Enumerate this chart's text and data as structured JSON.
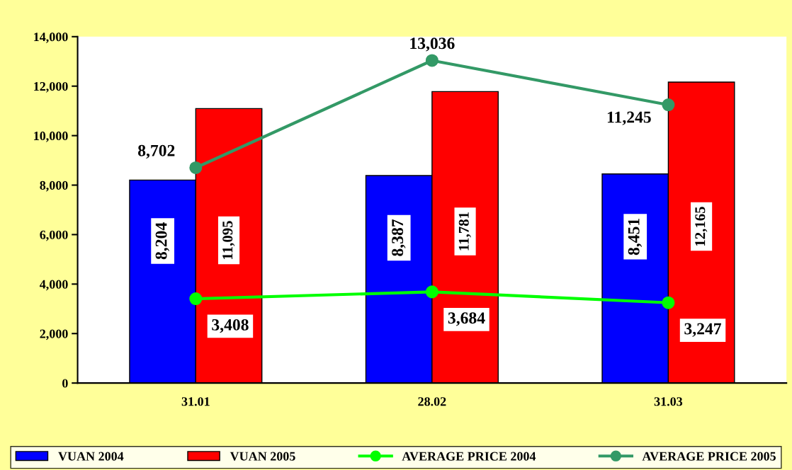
{
  "chart_data": {
    "type": "bar",
    "categories": [
      "31.01",
      "28.02",
      "31.03"
    ],
    "series": [
      {
        "name": "VUAN 2004",
        "color": "#0000ff",
        "values": [
          8204,
          8387,
          8451
        ],
        "value_labels": [
          "8,204",
          "8,387",
          "8,451"
        ]
      },
      {
        "name": "VUAN 2005",
        "color": "#ff0000",
        "values": [
          11095,
          11781,
          12165
        ],
        "value_labels": [
          "11,095",
          "11,781",
          "12,165"
        ]
      },
      {
        "name": "AVERAGE PRICE 2004",
        "type": "line",
        "color": "#00ff00",
        "values": [
          3408,
          3684,
          3247
        ],
        "value_labels": [
          "3,408",
          "3,684",
          "3,247"
        ]
      },
      {
        "name": "AVERAGE PRICE 2005",
        "type": "line",
        "color": "#339966",
        "values": [
          8702,
          13036,
          11245
        ],
        "value_labels": [
          "8,702",
          "13,036",
          "11,245"
        ]
      }
    ],
    "ylim": [
      0,
      14000
    ],
    "yticks": [
      0,
      {
        "value": 2000,
        "label": "2,000"
      },
      {
        "value": 4000,
        "label": "4,000"
      },
      {
        "value": 6000,
        "label": "6,000"
      },
      {
        "value": 8000,
        "label": "8,000"
      },
      {
        "value": 10000,
        "label": "10,000"
      },
      {
        "value": 12000,
        "label": "12,000"
      },
      {
        "value": 14000,
        "label": "14,000"
      }
    ],
    "grid": false,
    "legend": "bottom",
    "marker": "circle",
    "line_style": "solid"
  }
}
